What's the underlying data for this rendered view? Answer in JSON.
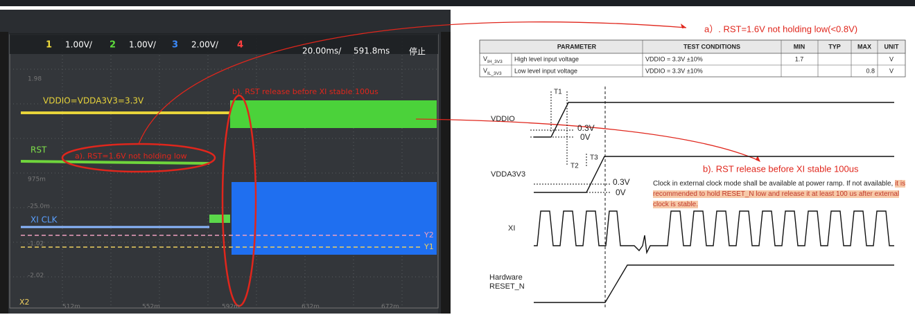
{
  "scope": {
    "channels": [
      {
        "num": "1",
        "scale": "1.00V/"
      },
      {
        "num": "2",
        "scale": "1.00V/"
      },
      {
        "num": "3",
        "scale": "2.00V/"
      },
      {
        "num": "4"
      }
    ],
    "timebase": "20.00ms/",
    "position": "591.8ms",
    "status": "停止",
    "trace_labels": {
      "vddio": "VDDIO=VDDA3V3=3.3V",
      "rst": "RST",
      "xi": "XI CLK"
    },
    "annotations": {
      "a": "a). RST=1.6V not holding low",
      "b": "b). RST release before XI stable 100us"
    },
    "y_labels": [
      "1.98",
      "975m",
      "-25.0m",
      "-1.02",
      "-2.02"
    ],
    "x_labels": [
      "512m",
      "552m",
      "592m",
      "632m",
      "672m"
    ],
    "markers": [
      "X2",
      "Y2",
      "Y1"
    ]
  },
  "spec_note": "a）. RST=1.6V not holding low(<0.8V)",
  "table": {
    "headers": [
      "PARAMETER",
      "TEST CONDITIONS",
      "MIN",
      "TYP",
      "MAX",
      "UNIT"
    ],
    "rows": [
      {
        "symbol": {
          "main": "V",
          "sub": "IH_3V3"
        },
        "parameter": "High level input voltage",
        "conditions": "VDDIO = 3.3V ±10%",
        "min": "1.7",
        "unit": "V"
      },
      {
        "symbol": {
          "main": "V",
          "sub": "IL_3V3"
        },
        "parameter": "Low level input voltage",
        "conditions": "VDDIO = 3.3V ±10%",
        "max": "0.8",
        "unit": "V"
      }
    ]
  },
  "timing": {
    "t1": "T1",
    "t2": "T2",
    "t3": "T3",
    "vddio": "VDDIO",
    "vddio_high": "0.3V",
    "vddio_low": "0V",
    "vdda": "VDDA3V3",
    "vdda_high": "0.3V",
    "vdda_low": "0V",
    "xi": "XI",
    "reset": "Hardware RESET_N",
    "annotation": "b). RST release before XI stable 100us",
    "note": {
      "plain": "Clock in external clock mode shall be available at power ramp. If not available,",
      "highlight": "it is recommended to hold RESET_N low and release it at least 100 us after external clock is stable."
    }
  }
}
